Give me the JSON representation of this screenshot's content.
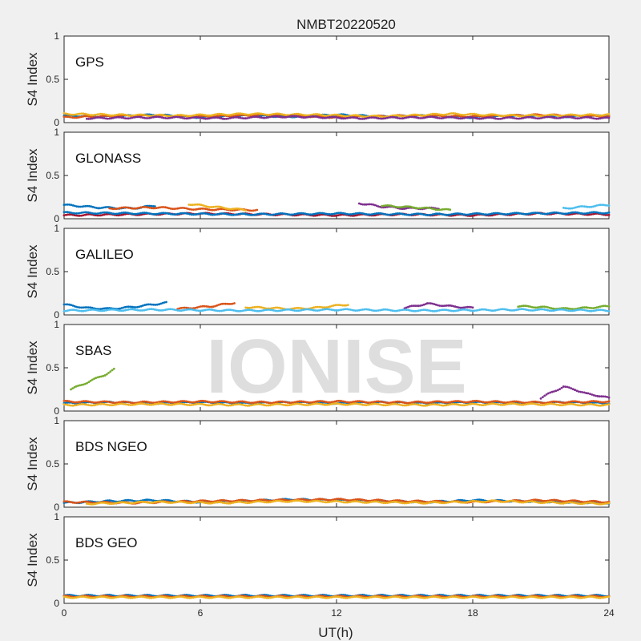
{
  "chart_data": {
    "type": "scatter",
    "title": "NMBT20220520",
    "watermark": "IONISE",
    "xlabel": "UT(h)",
    "ylabel": "S4 Index",
    "xlim": [
      0,
      24
    ],
    "xticks": [
      0,
      6,
      12,
      18,
      24
    ],
    "ylim": [
      0,
      1
    ],
    "yticks": [
      0,
      0.5,
      1
    ],
    "ytick_labels": [
      "0",
      "0.5",
      "1"
    ],
    "series_colors": [
      "#0072BD",
      "#D95319",
      "#EDB120",
      "#7E2F8E",
      "#77AC30",
      "#4DBEEE",
      "#A2142F"
    ],
    "panels": [
      {
        "label": "GPS",
        "tracks": [
          {
            "x": [
              0,
              2,
              4,
              6,
              8,
              10,
              12,
              14,
              16,
              18,
              20,
              22,
              24
            ],
            "y": [
              0.08,
              0.07,
              0.09,
              0.06,
              0.08,
              0.07,
              0.09,
              0.07,
              0.08,
              0.06,
              0.08,
              0.07,
              0.08
            ]
          },
          {
            "x": [
              0,
              3,
              6,
              9,
              12,
              15,
              18,
              21,
              24
            ],
            "y": [
              0.06,
              0.08,
              0.07,
              0.09,
              0.06,
              0.08,
              0.07,
              0.09,
              0.07
            ]
          },
          {
            "x": [
              0,
              2,
              5,
              8,
              11,
              14,
              17,
              20,
              24
            ],
            "y": [
              0.1,
              0.09,
              0.08,
              0.1,
              0.09,
              0.07,
              0.1,
              0.08,
              0.09
            ]
          },
          {
            "x": [
              1,
              4,
              7,
              10,
              13,
              16,
              19,
              22,
              24
            ],
            "y": [
              0.05,
              0.06,
              0.05,
              0.07,
              0.05,
              0.06,
              0.05,
              0.06,
              0.05
            ]
          }
        ]
      },
      {
        "label": "GLONASS",
        "tracks": [
          {
            "x": [
              0,
              1.5,
              3,
              4
            ],
            "y": [
              0.16,
              0.13,
              0.12,
              0.15
            ]
          },
          {
            "x": [
              2,
              4,
              6,
              8.5
            ],
            "y": [
              0.12,
              0.13,
              0.11,
              0.1
            ]
          },
          {
            "x": [
              5.5,
              6.5,
              8
            ],
            "y": [
              0.17,
              0.14,
              0.1
            ]
          },
          {
            "x": [
              13,
              14,
              15,
              16.5
            ],
            "y": [
              0.18,
              0.14,
              0.12,
              0.12
            ]
          },
          {
            "x": [
              14,
              15.5,
              17
            ],
            "y": [
              0.15,
              0.13,
              0.1
            ]
          },
          {
            "x": [
              22,
              23,
              24
            ],
            "y": [
              0.12,
              0.14,
              0.16
            ]
          },
          {
            "x": [
              0,
              3,
              6,
              9,
              12,
              15,
              18,
              21,
              24
            ],
            "y": [
              0.04,
              0.05,
              0.06,
              0.05,
              0.04,
              0.05,
              0.04,
              0.06,
              0.05
            ]
          },
          {
            "x": [
              0,
              4,
              8,
              12,
              16,
              20,
              24
            ],
            "y": [
              0.07,
              0.06,
              0.05,
              0.06,
              0.05,
              0.06,
              0.07
            ]
          }
        ]
      },
      {
        "label": "GALILEO",
        "tracks": [
          {
            "x": [
              0,
              1,
              2,
              3,
              4.5
            ],
            "y": [
              0.12,
              0.08,
              0.07,
              0.09,
              0.14
            ]
          },
          {
            "x": [
              5,
              6.5,
              7.5
            ],
            "y": [
              0.07,
              0.1,
              0.14
            ]
          },
          {
            "x": [
              8,
              9,
              10,
              11,
              12.5
            ],
            "y": [
              0.09,
              0.08,
              0.07,
              0.08,
              0.12
            ]
          },
          {
            "x": [
              15,
              16,
              17,
              18
            ],
            "y": [
              0.08,
              0.13,
              0.1,
              0.08
            ]
          },
          {
            "x": [
              20,
              21,
              22,
              23,
              24
            ],
            "y": [
              0.1,
              0.09,
              0.07,
              0.08,
              0.1
            ]
          },
          {
            "x": [
              0,
              4,
              8,
              12,
              16,
              20,
              24
            ],
            "y": [
              0.05,
              0.06,
              0.05,
              0.06,
              0.05,
              0.06,
              0.05
            ]
          }
        ]
      },
      {
        "label": "SBAS",
        "tracks": [
          {
            "x": [
              0,
              2,
              4,
              6,
              8,
              10,
              12,
              14,
              16,
              18,
              20,
              22,
              24
            ],
            "y": [
              0.09,
              0.1,
              0.09,
              0.1,
              0.09,
              0.1,
              0.09,
              0.1,
              0.09,
              0.1,
              0.09,
              0.1,
              0.09
            ]
          },
          {
            "x": [
              0,
              3,
              6,
              9,
              12,
              15,
              18,
              21,
              24
            ],
            "y": [
              0.11,
              0.1,
              0.11,
              0.1,
              0.11,
              0.1,
              0.11,
              0.1,
              0.11
            ]
          },
          {
            "x": [
              0,
              4,
              8,
              12,
              16,
              20,
              24
            ],
            "y": [
              0.07,
              0.08,
              0.07,
              0.08,
              0.07,
              0.08,
              0.07
            ]
          },
          {
            "x": [
              21,
              21.5,
              22,
              22.5,
              23,
              23.5,
              24
            ],
            "y": [
              0.15,
              0.22,
              0.28,
              0.25,
              0.2,
              0.18,
              0.15
            ]
          },
          {
            "x": [
              0.3,
              1.8,
              2.2
            ],
            "y": [
              0.25,
              0.42,
              0.48
            ]
          }
        ]
      },
      {
        "label": "BDS NGEO",
        "tracks": [
          {
            "x": [
              0,
              2,
              4,
              6,
              8,
              10,
              12,
              14,
              16,
              18,
              20,
              22,
              24
            ],
            "y": [
              0.05,
              0.07,
              0.08,
              0.06,
              0.07,
              0.09,
              0.08,
              0.07,
              0.06,
              0.08,
              0.07,
              0.06,
              0.05
            ]
          },
          {
            "x": [
              0,
              3,
              6,
              9,
              12,
              15,
              18,
              21,
              24
            ],
            "y": [
              0.06,
              0.05,
              0.07,
              0.08,
              0.09,
              0.07,
              0.06,
              0.08,
              0.06
            ]
          },
          {
            "x": [
              1,
              4,
              7,
              10,
              13,
              16,
              19,
              22,
              24
            ],
            "y": [
              0.04,
              0.06,
              0.05,
              0.07,
              0.06,
              0.05,
              0.07,
              0.05,
              0.04
            ]
          }
        ]
      },
      {
        "label": "BDS GEO",
        "tracks": [
          {
            "x": [
              0,
              2,
              4,
              6,
              8,
              10,
              12,
              14,
              16,
              18,
              20,
              22,
              24
            ],
            "y": [
              0.09,
              0.09,
              0.09,
              0.09,
              0.09,
              0.09,
              0.09,
              0.09,
              0.09,
              0.09,
              0.09,
              0.09,
              0.09
            ]
          },
          {
            "x": [
              0,
              3,
              6,
              9,
              12,
              15,
              18,
              21,
              24
            ],
            "y": [
              0.08,
              0.08,
              0.08,
              0.08,
              0.08,
              0.08,
              0.08,
              0.08,
              0.08
            ]
          },
          {
            "x": [
              0,
              4,
              8,
              12,
              16,
              20,
              24
            ],
            "y": [
              0.07,
              0.07,
              0.07,
              0.07,
              0.07,
              0.07,
              0.07
            ]
          }
        ]
      }
    ]
  }
}
